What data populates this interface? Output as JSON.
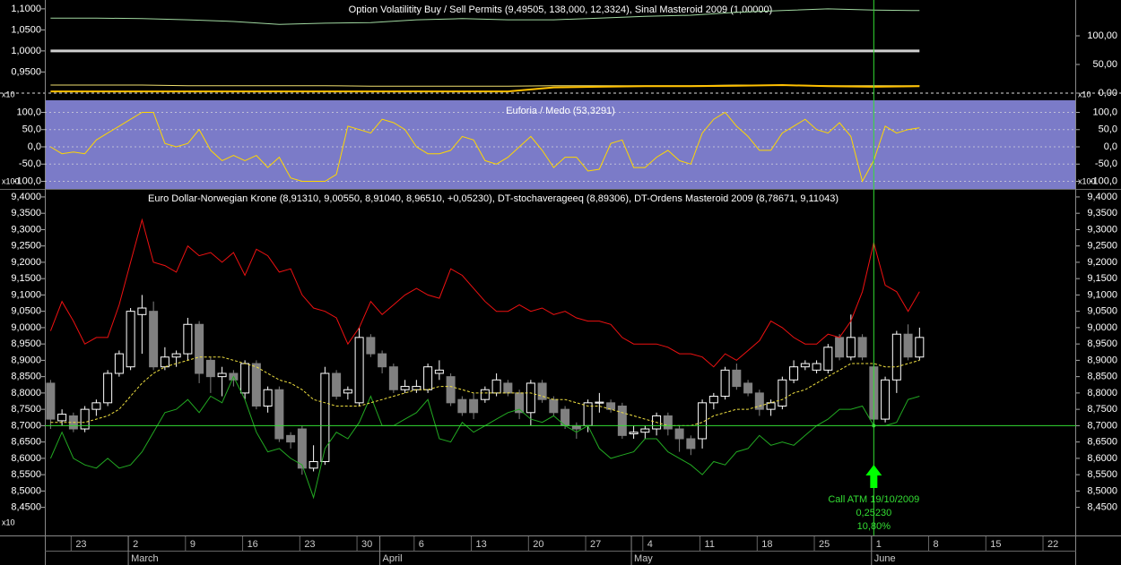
{
  "chart_data": [
    {
      "type": "line",
      "title": "Option Volatilitity Buy / Sell Permits (9,49505, 138,000, 12,3324), Sinal Masteroid 2009 (1,00000)",
      "scale_label": "x10",
      "ylim": [
        0.887,
        1.121
      ],
      "yticks": [
        {
          "value": 1.1,
          "label": "1,1000"
        },
        {
          "value": 1.05,
          "label": "1,0500"
        },
        {
          "value": 1.0,
          "label": "1,0000"
        },
        {
          "value": 0.95,
          "label": "0,9500"
        }
      ],
      "y2lim": [
        -9.4,
        162.5
      ],
      "y2ticks": [
        {
          "value": 100,
          "label": "100,00"
        },
        {
          "value": 50,
          "label": "50,00"
        },
        {
          "value": 0,
          "label": "0,00"
        }
      ],
      "series": [
        {
          "color": "#a0d8a0",
          "axis": "y2",
          "x": [
            0,
            4,
            8,
            12,
            16,
            20,
            24,
            28,
            32,
            36,
            40,
            44,
            48,
            52,
            56,
            60,
            64,
            68,
            72,
            76
          ],
          "values": [
            131,
            131,
            130,
            128,
            125,
            120,
            122,
            123,
            128,
            130,
            128,
            128,
            131,
            134,
            136,
            141,
            144,
            147,
            145,
            144
          ]
        },
        {
          "color": "#d0d0d0",
          "line_width": 3,
          "x": [
            0,
            76
          ],
          "values": [
            1.0,
            1.0
          ]
        },
        {
          "color": "#f0e070",
          "axis": "y2",
          "x": [
            0,
            4,
            8,
            12,
            16,
            20,
            24,
            28,
            32,
            36,
            40,
            44,
            48,
            52,
            56,
            60,
            64,
            68,
            72,
            76
          ],
          "values": [
            14,
            14,
            14,
            13,
            13,
            13,
            13,
            12,
            12,
            12,
            12,
            13,
            13,
            13,
            13,
            14,
            14,
            13,
            13,
            13
          ]
        },
        {
          "color": "#ffc000",
          "axis": "y2",
          "line_width": 2,
          "x": [
            0,
            4,
            8,
            12,
            16,
            20,
            24,
            28,
            32,
            36,
            40,
            44,
            48,
            52,
            56,
            60,
            64,
            68,
            72,
            76
          ],
          "values": [
            3,
            3,
            3,
            3,
            3,
            3,
            3,
            3,
            3,
            3,
            3,
            10,
            11,
            12,
            12,
            13,
            14,
            12,
            11,
            12
          ]
        }
      ]
    },
    {
      "type": "line",
      "title": "Euforia / Medo (53,3291)",
      "scale_label": "x100",
      "background": "#7b7bc8",
      "grid": true,
      "ylim": [
        -122,
        135
      ],
      "yticks": [
        {
          "value": 100,
          "label": "100,0"
        },
        {
          "value": 50,
          "label": "50,0"
        },
        {
          "value": 0,
          "label": "0,0"
        },
        {
          "value": -50,
          "label": "-50,0"
        },
        {
          "value": -100,
          "label": "-100,0"
        }
      ],
      "series": [
        {
          "color": "#ffd700",
          "values": [
            0,
            -20,
            -15,
            -20,
            20,
            40,
            60,
            80,
            100,
            100,
            10,
            0,
            10,
            50,
            -10,
            -40,
            -25,
            -40,
            -25,
            -60,
            -30,
            -90,
            -100,
            -100,
            -100,
            -80,
            60,
            50,
            40,
            80,
            70,
            50,
            0,
            -20,
            -20,
            -10,
            30,
            20,
            -40,
            -50,
            -30,
            0,
            30,
            -10,
            -60,
            -30,
            -30,
            -70,
            -65,
            10,
            20,
            -60,
            -60,
            -30,
            -10,
            -40,
            -50,
            40,
            80,
            100,
            60,
            30,
            -10,
            -10,
            40,
            60,
            80,
            50,
            40,
            70,
            30,
            -100,
            -40,
            60,
            40,
            50,
            55
          ]
        }
      ]
    },
    {
      "type": "candlestick",
      "title": "Euro Dollar-Norwegian Krone (8,91310, 9,00550, 8,91040, 8,96510, +0,05230), DT-stochaverageeq (8,89306), DT-Ordens Masteroid 2009 (8,78671, 9,11043)",
      "scale_label": "x10",
      "up_color": "#000000",
      "up_edge": "#ffffff",
      "down_color": "#808080",
      "ylim": [
        8.364,
        9.419
      ],
      "xlim": [
        -0.5,
        89.7
      ],
      "yticks": [
        {
          "value": 9.4,
          "label": "9,4000"
        },
        {
          "value": 9.35,
          "label": "9,3500"
        },
        {
          "value": 9.3,
          "label": "9,3000"
        },
        {
          "value": 9.25,
          "label": "9,2500"
        },
        {
          "value": 9.2,
          "label": "9,2000"
        },
        {
          "value": 9.15,
          "label": "9,1500"
        },
        {
          "value": 9.1,
          "label": "9,1000"
        },
        {
          "value": 9.05,
          "label": "9,0500"
        },
        {
          "value": 9.0,
          "label": "9,0000"
        },
        {
          "value": 8.95,
          "label": "8,9500"
        },
        {
          "value": 8.9,
          "label": "8,9000"
        },
        {
          "value": 8.85,
          "label": "8,8500"
        },
        {
          "value": 8.8,
          "label": "8,8000"
        },
        {
          "value": 8.75,
          "label": "8,7500"
        },
        {
          "value": 8.7,
          "label": "8,7000"
        },
        {
          "value": 8.65,
          "label": "8,6500"
        },
        {
          "value": 8.6,
          "label": "8,6000"
        },
        {
          "value": 8.55,
          "label": "8,5500"
        },
        {
          "value": 8.5,
          "label": "8,5000"
        },
        {
          "value": 8.45,
          "label": "8,4500"
        }
      ],
      "xticks": [
        {
          "value": 1.8,
          "label": "23"
        },
        {
          "value": 6.8,
          "label": "2"
        },
        {
          "value": 11.8,
          "label": "9"
        },
        {
          "value": 16.8,
          "label": "16"
        },
        {
          "value": 21.8,
          "label": "23"
        },
        {
          "value": 26.8,
          "label": "30"
        },
        {
          "value": 31.8,
          "label": "6"
        },
        {
          "value": 36.8,
          "label": "13"
        },
        {
          "value": 41.8,
          "label": "20"
        },
        {
          "value": 46.8,
          "label": "27"
        },
        {
          "value": 51.8,
          "label": "4"
        },
        {
          "value": 56.8,
          "label": "11"
        },
        {
          "value": 61.8,
          "label": "18"
        },
        {
          "value": 66.8,
          "label": "25"
        },
        {
          "value": 71.8,
          "label": "1"
        },
        {
          "value": 76.8,
          "label": "8"
        },
        {
          "value": 81.8,
          "label": "15"
        },
        {
          "value": 86.8,
          "label": "22"
        }
      ],
      "month_ticks": [
        {
          "value": 6.8,
          "label": "March"
        },
        {
          "value": 28.8,
          "label": "April"
        },
        {
          "value": 50.8,
          "label": "May"
        },
        {
          "value": 71.8,
          "label": "June"
        }
      ],
      "open": [
        8.83,
        8.715,
        8.73,
        8.69,
        8.75,
        8.77,
        8.86,
        8.88,
        9.04,
        9.05,
        8.88,
        8.91,
        8.92,
        9.01,
        8.9,
        8.85,
        8.86,
        8.8,
        8.89,
        8.76,
        8.81,
        8.67,
        8.69,
        8.57,
        8.59,
        8.86,
        8.8,
        8.77,
        8.97,
        8.92,
        8.88,
        8.81,
        8.81,
        8.81,
        8.86,
        8.85,
        8.78,
        8.78,
        8.78,
        8.8,
        8.83,
        8.8,
        8.74,
        8.83,
        8.78,
        8.75,
        8.7,
        8.7,
        8.769,
        8.77,
        8.76,
        8.675,
        8.68,
        8.69,
        8.73,
        8.69,
        8.66,
        8.66,
        8.77,
        8.79,
        8.87,
        8.83,
        8.8,
        8.75,
        8.76,
        8.84,
        8.88,
        8.87,
        8.87,
        8.97,
        8.91,
        8.97,
        8.88,
        8.72,
        8.84,
        8.98,
        8.91
      ],
      "high": [
        8.84,
        8.75,
        8.74,
        8.76,
        8.78,
        8.87,
        8.93,
        9.06,
        9.1,
        9.08,
        8.94,
        8.93,
        9.03,
        9.02,
        8.91,
        8.88,
        8.87,
        8.9,
        8.9,
        8.82,
        8.82,
        8.68,
        8.7,
        8.64,
        8.88,
        8.87,
        8.82,
        9.0,
        8.98,
        8.93,
        8.89,
        8.84,
        8.84,
        8.89,
        8.9,
        8.86,
        8.79,
        8.8,
        8.82,
        8.86,
        8.84,
        8.81,
        8.84,
        8.84,
        8.79,
        8.76,
        8.71,
        8.78,
        8.8,
        8.78,
        8.77,
        8.7,
        8.7,
        8.74,
        8.74,
        8.7,
        8.67,
        8.78,
        8.8,
        8.88,
        8.89,
        8.84,
        8.81,
        8.78,
        8.85,
        8.9,
        8.9,
        8.9,
        8.95,
        8.98,
        9.04,
        8.98,
        8.89,
        8.85,
        8.99,
        9.01,
        9.0
      ],
      "low": [
        8.69,
        8.7,
        8.68,
        8.68,
        8.73,
        8.76,
        8.85,
        8.87,
        8.92,
        8.87,
        8.87,
        8.88,
        8.9,
        8.83,
        8.8,
        8.79,
        8.82,
        8.78,
        8.75,
        8.74,
        8.65,
        8.63,
        8.55,
        8.56,
        8.58,
        8.78,
        8.78,
        8.76,
        8.91,
        8.86,
        8.8,
        8.8,
        8.8,
        8.8,
        8.84,
        8.76,
        8.73,
        8.72,
        8.77,
        8.79,
        8.79,
        8.72,
        8.7,
        8.77,
        8.73,
        8.69,
        8.66,
        8.68,
        8.74,
        8.74,
        8.66,
        8.66,
        8.66,
        8.67,
        8.67,
        8.62,
        8.61,
        8.63,
        8.75,
        8.78,
        8.81,
        8.79,
        8.73,
        8.73,
        8.75,
        8.83,
        8.87,
        8.86,
        8.86,
        8.9,
        8.9,
        8.9,
        8.7,
        8.71,
        8.8,
        8.9,
        8.9
      ],
      "close": [
        8.72,
        8.735,
        8.69,
        8.75,
        8.77,
        8.86,
        8.92,
        9.05,
        9.06,
        8.88,
        8.91,
        8.92,
        9.01,
        8.86,
        8.85,
        8.86,
        8.84,
        8.89,
        8.76,
        8.81,
        8.66,
        8.65,
        8.57,
        8.59,
        8.86,
        8.79,
        8.81,
        8.97,
        8.92,
        8.88,
        8.81,
        8.82,
        8.82,
        8.88,
        8.87,
        8.77,
        8.74,
        8.74,
        8.81,
        8.84,
        8.8,
        8.74,
        8.83,
        8.78,
        8.74,
        8.7,
        8.69,
        8.77,
        8.772,
        8.75,
        8.67,
        8.68,
        8.69,
        8.73,
        8.69,
        8.66,
        8.63,
        8.77,
        8.79,
        8.87,
        8.82,
        8.8,
        8.75,
        8.77,
        8.84,
        8.88,
        8.89,
        8.89,
        8.94,
        8.91,
        8.97,
        8.91,
        8.72,
        8.84,
        8.98,
        8.91,
        8.97
      ],
      "series": [
        {
          "color": "#ee1111",
          "values": [
            8.99,
            9.08,
            9.02,
            8.95,
            8.97,
            8.97,
            9.07,
            9.2,
            9.33,
            9.2,
            9.19,
            9.17,
            9.25,
            9.22,
            9.23,
            9.2,
            9.23,
            9.16,
            9.24,
            9.22,
            9.17,
            9.18,
            9.1,
            9.06,
            9.05,
            9.03,
            8.95,
            9.0,
            9.08,
            9.04,
            9.07,
            9.1,
            9.12,
            9.1,
            9.09,
            9.18,
            9.16,
            9.12,
            9.08,
            9.05,
            9.05,
            9.07,
            9.05,
            9.06,
            9.04,
            9.05,
            9.03,
            9.02,
            9.02,
            9.01,
            8.97,
            8.95,
            8.95,
            8.95,
            8.94,
            8.92,
            8.92,
            8.91,
            8.88,
            8.92,
            8.9,
            8.93,
            8.96,
            9.02,
            9.0,
            8.97,
            8.95,
            8.95,
            8.98,
            8.97,
            9.02,
            9.11,
            9.26,
            9.13,
            9.11,
            9.05,
            9.11
          ]
        },
        {
          "color": "#22aa22",
          "values": [
            8.6,
            8.68,
            8.6,
            8.58,
            8.57,
            8.6,
            8.57,
            8.58,
            8.62,
            8.68,
            8.74,
            8.75,
            8.78,
            8.74,
            8.79,
            8.77,
            8.85,
            8.78,
            8.68,
            8.62,
            8.63,
            8.6,
            8.58,
            8.48,
            8.63,
            8.68,
            8.66,
            8.71,
            8.79,
            8.7,
            8.7,
            8.72,
            8.74,
            8.78,
            8.66,
            8.65,
            8.71,
            8.68,
            8.7,
            8.72,
            8.74,
            8.75,
            8.72,
            8.71,
            8.73,
            8.7,
            8.68,
            8.7,
            8.63,
            8.6,
            8.61,
            8.62,
            8.66,
            8.66,
            8.62,
            8.6,
            8.58,
            8.55,
            8.59,
            8.58,
            8.62,
            8.63,
            8.67,
            8.64,
            8.65,
            8.64,
            8.67,
            8.7,
            8.72,
            8.75,
            8.75,
            8.76,
            8.7,
            8.7,
            8.71,
            8.78,
            8.79
          ]
        },
        {
          "color": "#f0e040",
          "dash": true,
          "values": [
            8.71,
            8.71,
            8.71,
            8.71,
            8.72,
            8.73,
            8.75,
            8.79,
            8.83,
            8.86,
            8.88,
            8.89,
            8.9,
            8.91,
            8.91,
            8.91,
            8.9,
            8.89,
            8.88,
            8.86,
            8.84,
            8.83,
            8.81,
            8.78,
            8.77,
            8.76,
            8.76,
            8.76,
            8.77,
            8.78,
            8.79,
            8.8,
            8.81,
            8.81,
            8.82,
            8.82,
            8.81,
            8.8,
            8.8,
            8.8,
            8.8,
            8.8,
            8.8,
            8.79,
            8.78,
            8.78,
            8.77,
            8.76,
            8.76,
            8.75,
            8.74,
            8.73,
            8.72,
            8.71,
            8.7,
            8.7,
            8.7,
            8.71,
            8.73,
            8.74,
            8.75,
            8.75,
            8.76,
            8.77,
            8.78,
            8.8,
            8.81,
            8.83,
            8.85,
            8.87,
            8.89,
            8.89,
            8.89,
            8.88,
            8.88,
            8.89,
            8.9
          ]
        }
      ],
      "crosshair": {
        "x": 72,
        "y": 8.7,
        "color": "#33dd33"
      },
      "annotations": [
        "Call ATM 19/10/2009",
        "0,25230",
        "10,80%"
      ]
    }
  ]
}
